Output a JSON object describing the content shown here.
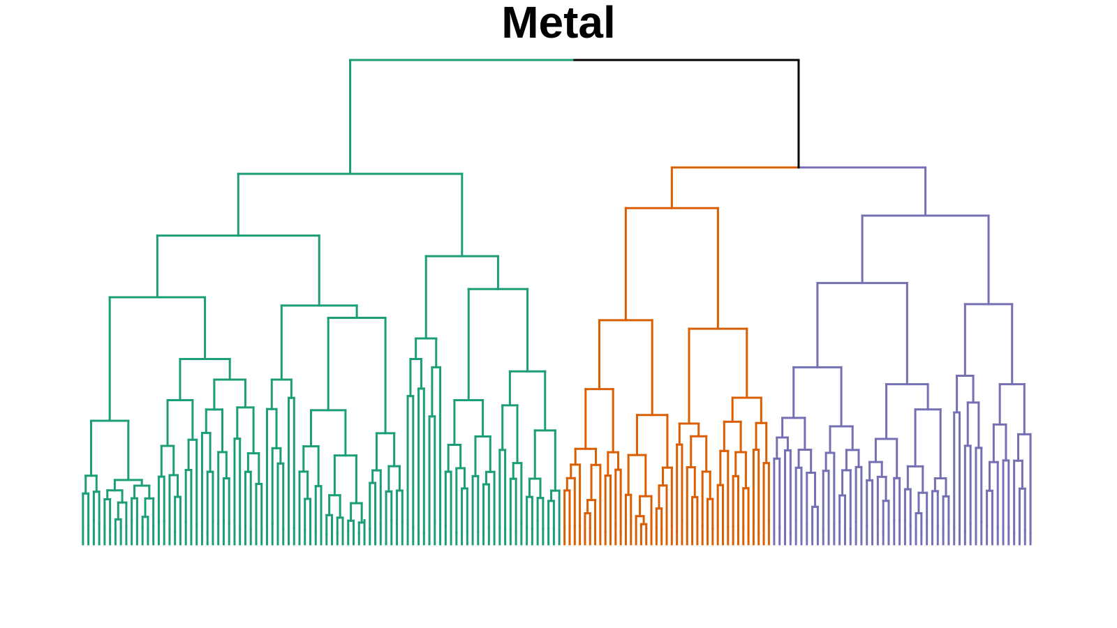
{
  "title": "Metal",
  "tree": {
    "root": {
      "color": "#000000",
      "children": [
        {
          "cluster": "green",
          "color": "#1b9e77",
          "structure": [
            [
              0.9,
              [
                [
                  0.75,
                  [
                    [
                      0.6,
                      [
                        [
                          0.3,
                          14
                        ],
                        [
                          0.45,
                          [
                            [
                              0.35,
                              8
                            ],
                            [
                              0.4,
                              12
                            ]
                          ]
                        ]
                      ]
                    ],
                    [
                      0.58,
                      [
                        [
                          0.4,
                          6
                        ],
                        [
                          0.55,
                          20
                        ]
                      ]
                    ]
                  ]
                ],
                [
                  0.7,
                  [
                    [
                      0.5,
                      [
                        [
                          0.45,
                          4
                        ],
                        [
                          0.43,
                          3
                        ]
                      ]
                    ],
                    [
                      0.62,
                      [
                        [
                          0.35,
                          10
                        ],
                        [
                          0.42,
                          12
                        ]
                      ]
                    ]
                  ]
                ]
              ]
            ]
          ]
        },
        {
          "cluster": "orange",
          "color": "#d95f02",
          "structure": [
            [
              0.78,
              [
                [
                  0.52,
                  [
                    [
                      0.36,
                      12
                    ],
                    [
                      0.3,
                      10
                    ]
                  ]
                ],
                [
                  0.5,
                  [
                    [
                      0.28,
                      8
                    ],
                    [
                      0.34,
                      11
                    ]
                  ]
                ]
              ]
            ]
          ]
        },
        {
          "cluster": "purple",
          "color": "#7570b3",
          "structure": [
            [
              0.78,
              [
                [
                  0.62,
                  [
                    [
                      0.42,
                      [
                        [
                          0.3,
                          9
                        ],
                        [
                          0.28,
                          8
                        ]
                      ]
                    ],
                    [
                      0.38,
                      [
                        [
                          0.25,
                          7
                        ],
                        [
                          0.32,
                          9
                        ]
                      ]
                    ]
                  ]
                ],
                [
                  0.57,
                  [
                    [
                      0.4,
                      6
                    ],
                    [
                      0.38,
                      9
                    ]
                  ]
                ]
              ]
            ]
          ]
        }
      ]
    }
  }
}
